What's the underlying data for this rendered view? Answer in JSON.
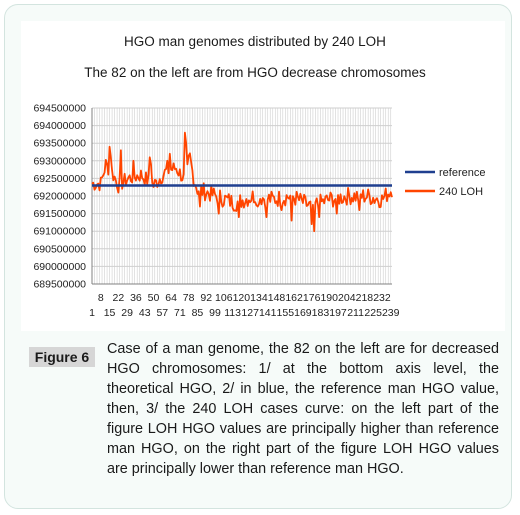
{
  "figure": {
    "label": "Figure 6",
    "caption": "Case of a man genome, the 82 on the left are for decreased HGO chromosomes: 1/ at the bottom axis level, the theoretical HGO, 2/ in blue, the reference man HGO value, then, 3/ the 240 LOH cases curve: on the left part of the figure LOH HGO values are principally higher than reference man HGO, on the right part of the figure LOH HGO values are principally lower than reference man HGO."
  },
  "colors": {
    "reference": "#1f3f8f",
    "loh": "#ff4500",
    "grid": "#cfcfcf",
    "axis": "#808080"
  },
  "chart_data": {
    "type": "line",
    "title": "HGO man genomes distributed by 240 LOH",
    "subtitle": "The 82 on the left are from HGO decrease chromosomes",
    "ylim": [
      689500000,
      694500000
    ],
    "y_ticks": [
      "694500000",
      "694000000",
      "693500000",
      "693000000",
      "692500000",
      "692000000",
      "691500000",
      "691000000",
      "690500000",
      "690000000",
      "689500000"
    ],
    "x_range": [
      1,
      240
    ],
    "x_tick_labels_upper": [
      "8",
      "22",
      "36",
      "50",
      "64",
      "78",
      "92",
      "106",
      "120",
      "134",
      "148",
      "162",
      "176",
      "190",
      "204",
      "218",
      "232"
    ],
    "x_tick_labels_lower": [
      "1",
      "15",
      "29",
      "43",
      "57",
      "71",
      "85",
      "99",
      "113",
      "127",
      "141",
      "155",
      "169",
      "183",
      "197",
      "211",
      "225",
      "239"
    ],
    "legend_position": "right",
    "series": [
      {
        "name": "reference",
        "constant": 692300000
      },
      {
        "name": "240 LOH",
        "approximate": true
      }
    ]
  }
}
